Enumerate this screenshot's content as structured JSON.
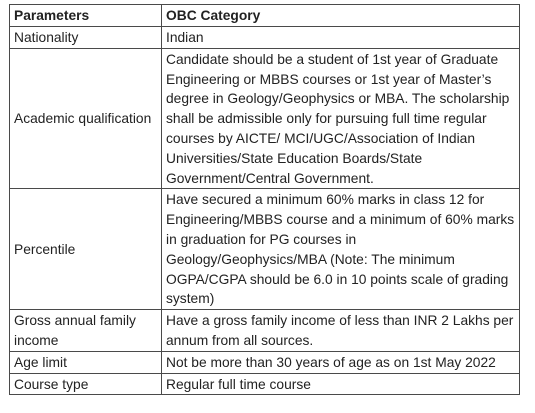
{
  "table": {
    "headers": [
      "Parameters",
      "OBC Category"
    ],
    "rows": [
      {
        "parameter": "Nationality",
        "value": "Indian"
      },
      {
        "parameter": "Academic qualification",
        "value": "Candidate should be a student of 1st year of Graduate Engineering or MBBS courses or 1st year of Master’s degree in Geology/Geophysics or MBA. The scholarship shall be admissible only for pursuing full time regular courses by AICTE/ MCI/UGC/Association of Indian Universities/State Education Boards/State Government/Central Government."
      },
      {
        "parameter": "Percentile",
        "value": "Have secured a minimum 60% marks in class 12 for Engineering/MBBS course and a minimum of 60% marks in graduation for PG courses in Geology/Geophysics/MBA (Note: The minimum OGPA/CGPA should be 6.0 in 10 points scale of grading system)"
      },
      {
        "parameter": "Gross annual family income",
        "value": "Have a gross family income of less than INR 2 Lakhs per annum from all sources."
      },
      {
        "parameter": "Age limit",
        "value": "Not be more than 30 years of age as on 1st May 2022"
      },
      {
        "parameter": "Course type",
        "value": "Regular full time course"
      }
    ]
  }
}
